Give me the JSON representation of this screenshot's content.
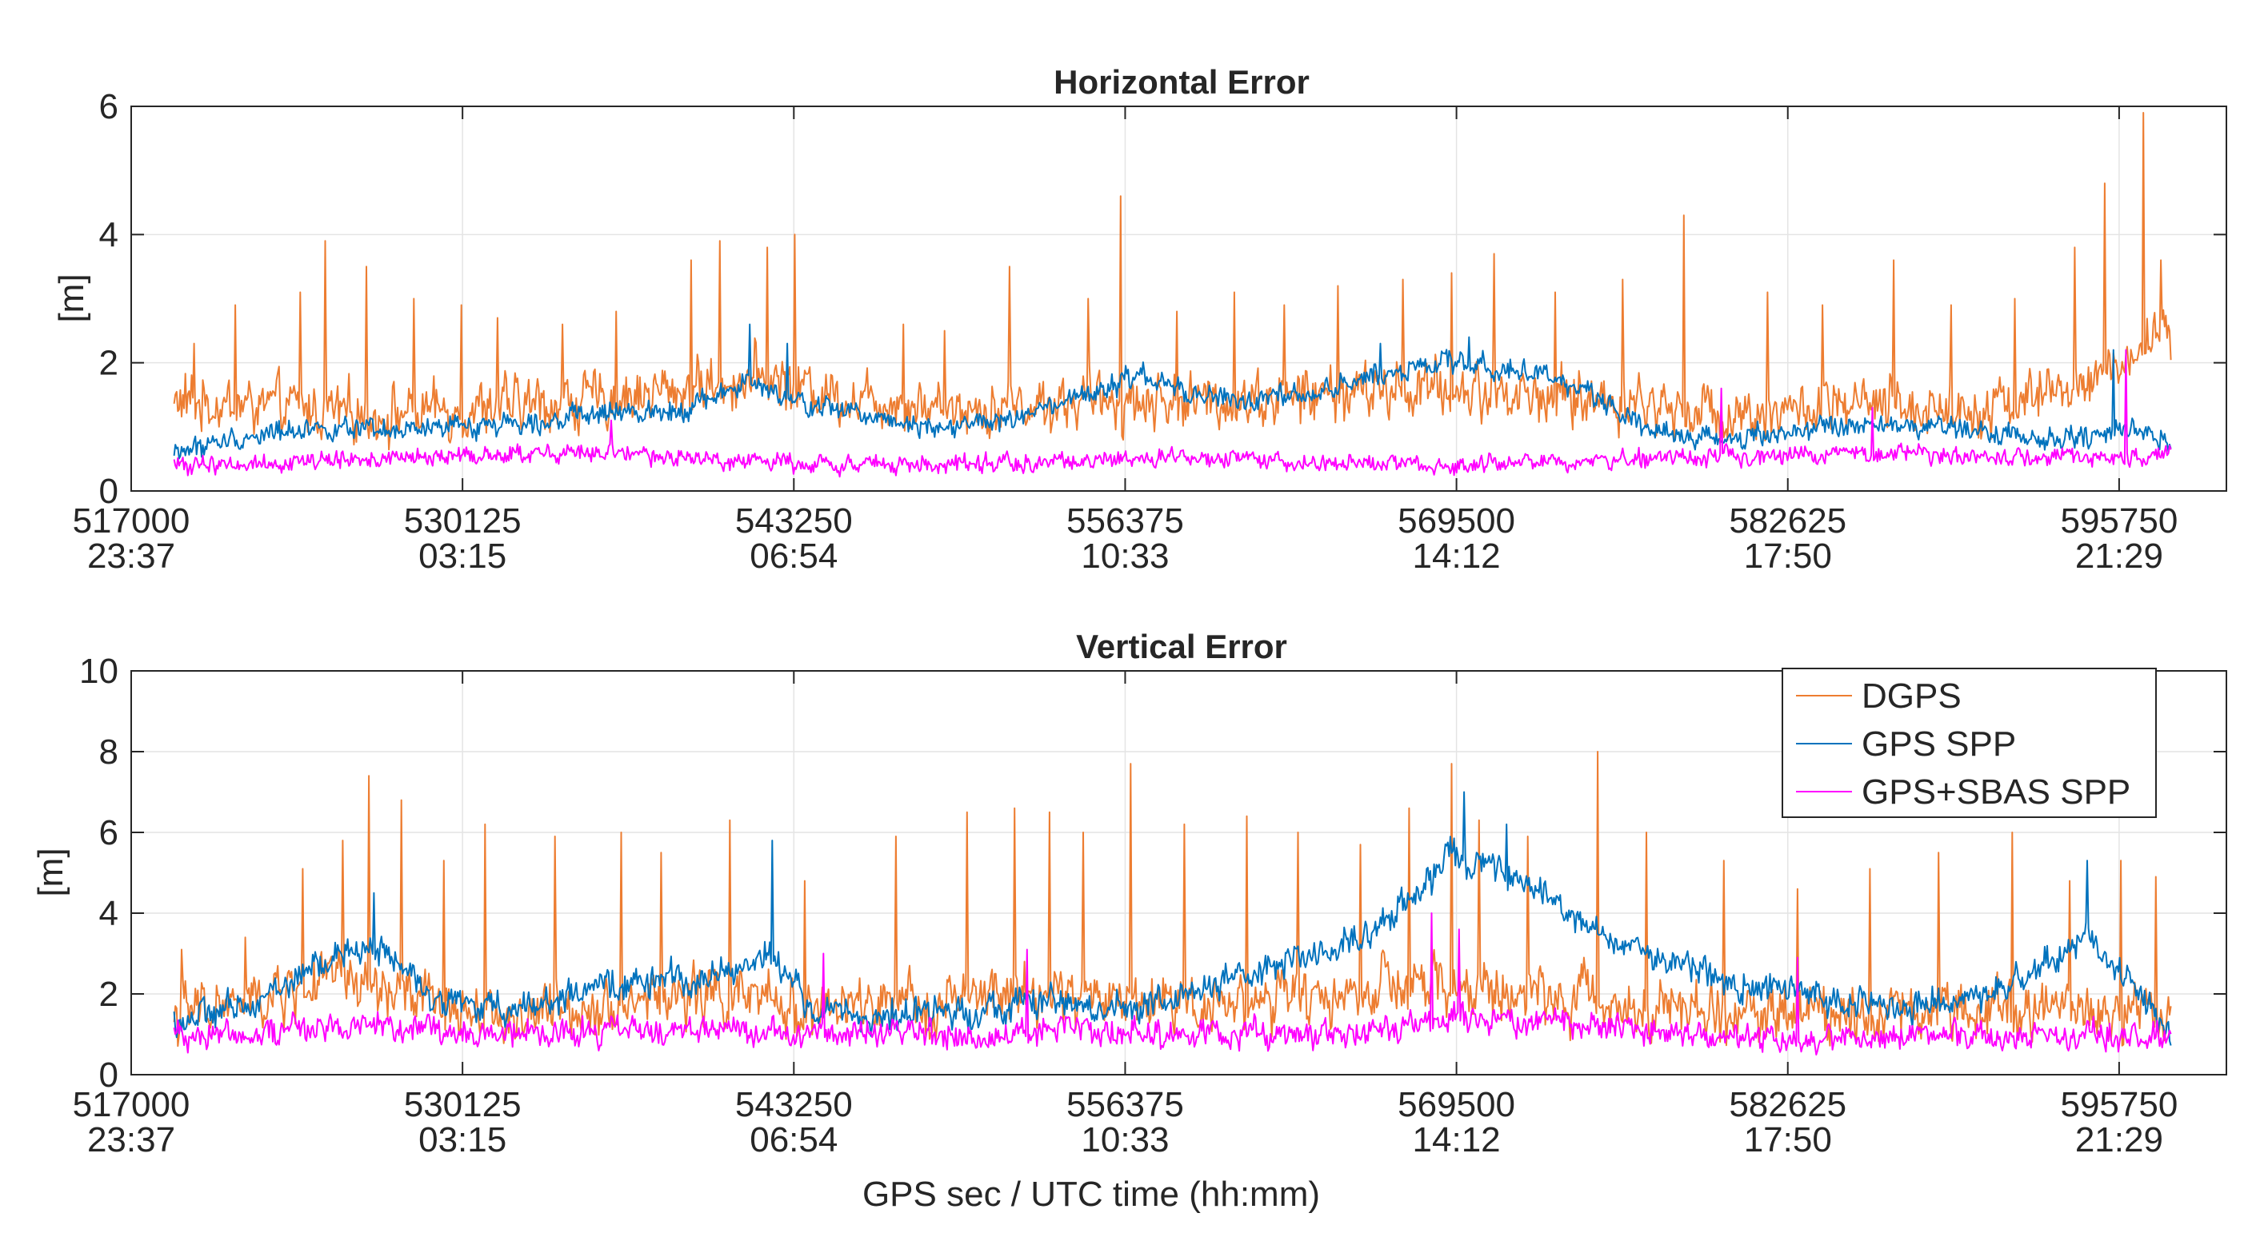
{
  "chart_data": [
    {
      "type": "line",
      "title": "Horizontal Error",
      "ylabel": "[m]",
      "xlabel": "",
      "xlim": [
        517000,
        600000
      ],
      "ylim": [
        0,
        6
      ],
      "yticks": [
        0,
        2,
        4,
        6
      ],
      "xticks": [
        {
          "gps": "517000",
          "utc": "23:37"
        },
        {
          "gps": "530125",
          "utc": "03:15"
        },
        {
          "gps": "543250",
          "utc": "06:54"
        },
        {
          "gps": "556375",
          "utc": "10:33"
        },
        {
          "gps": "569500",
          "utc": "14:12"
        },
        {
          "gps": "582625",
          "utc": "17:50"
        },
        {
          "gps": "595750",
          "utc": "21:29"
        }
      ],
      "grid": true,
      "x_start": 518700,
      "x_end": 597800,
      "series": [
        {
          "name": "DGPS",
          "color": "#ED7D31",
          "trend": [
            [
              518700,
              1.4
            ],
            [
              523000,
              1.3
            ],
            [
              527000,
              1.2
            ],
            [
              531000,
              1.3
            ],
            [
              535000,
              1.4
            ],
            [
              539000,
              1.6
            ],
            [
              542000,
              1.8
            ],
            [
              545000,
              1.5
            ],
            [
              550000,
              1.3
            ],
            [
              555000,
              1.4
            ],
            [
              560000,
              1.4
            ],
            [
              564000,
              1.5
            ],
            [
              568000,
              1.6
            ],
            [
              572000,
              1.5
            ],
            [
              576000,
              1.4
            ],
            [
              580000,
              1.2
            ],
            [
              585000,
              1.3
            ],
            [
              590000,
              1.3
            ],
            [
              594000,
              1.6
            ],
            [
              597800,
              2.4
            ]
          ],
          "noise": 0.55,
          "spikes": [
            [
              519500,
              2.3
            ],
            [
              521100,
              2.9
            ],
            [
              523700,
              3.1
            ],
            [
              524700,
              3.9
            ],
            [
              526300,
              3.5
            ],
            [
              528200,
              3.0
            ],
            [
              530100,
              2.9
            ],
            [
              531500,
              2.7
            ],
            [
              534100,
              2.6
            ],
            [
              536200,
              2.8
            ],
            [
              539200,
              3.6
            ],
            [
              540300,
              3.9
            ],
            [
              542200,
              3.8
            ],
            [
              543300,
              4.0
            ],
            [
              547600,
              2.6
            ],
            [
              549200,
              2.5
            ],
            [
              551800,
              3.5
            ],
            [
              554900,
              3.0
            ],
            [
              556200,
              4.6
            ],
            [
              558400,
              2.8
            ],
            [
              560700,
              3.1
            ],
            [
              562700,
              2.9
            ],
            [
              564800,
              3.2
            ],
            [
              567400,
              3.3
            ],
            [
              569300,
              3.4
            ],
            [
              571000,
              3.7
            ],
            [
              573400,
              3.1
            ],
            [
              576100,
              3.3
            ],
            [
              578500,
              4.3
            ],
            [
              581800,
              3.1
            ],
            [
              584000,
              2.9
            ],
            [
              586800,
              3.6
            ],
            [
              589100,
              2.9
            ],
            [
              591600,
              3.0
            ],
            [
              594000,
              3.8
            ],
            [
              595200,
              4.8
            ],
            [
              596700,
              5.9
            ],
            [
              597400,
              3.6
            ]
          ]
        },
        {
          "name": "GPS SPP",
          "color": "#0072BD",
          "trend": [
            [
              518700,
              0.6
            ],
            [
              521000,
              0.8
            ],
            [
              524000,
              1.0
            ],
            [
              527000,
              0.9
            ],
            [
              530000,
              1.0
            ],
            [
              533000,
              1.1
            ],
            [
              536000,
              1.2
            ],
            [
              539000,
              1.3
            ],
            [
              541500,
              1.7
            ],
            [
              543000,
              1.4
            ],
            [
              546000,
              1.2
            ],
            [
              549000,
              1.0
            ],
            [
              552000,
              1.1
            ],
            [
              555000,
              1.5
            ],
            [
              557000,
              1.8
            ],
            [
              559000,
              1.5
            ],
            [
              561000,
              1.4
            ],
            [
              564000,
              1.5
            ],
            [
              566000,
              1.8
            ],
            [
              569000,
              2.0
            ],
            [
              572000,
              1.9
            ],
            [
              575000,
              1.5
            ],
            [
              577000,
              1.0
            ],
            [
              579000,
              0.8
            ],
            [
              582000,
              0.9
            ],
            [
              585000,
              1.0
            ],
            [
              588000,
              1.0
            ],
            [
              591000,
              0.9
            ],
            [
              594000,
              0.8
            ],
            [
              596000,
              1.0
            ],
            [
              597800,
              0.8
            ]
          ],
          "noise": 0.22,
          "spikes": [
            [
              541500,
              2.6
            ],
            [
              543000,
              2.3
            ],
            [
              566500,
              2.3
            ],
            [
              570000,
              2.4
            ],
            [
              595500,
              2.2
            ]
          ]
        },
        {
          "name": "GPS+SBAS SPP",
          "color": "#FF00FF",
          "trend": [
            [
              518700,
              0.4
            ],
            [
              523000,
              0.45
            ],
            [
              527000,
              0.5
            ],
            [
              531000,
              0.55
            ],
            [
              535000,
              0.6
            ],
            [
              539000,
              0.5
            ],
            [
              543000,
              0.45
            ],
            [
              548000,
              0.4
            ],
            [
              553000,
              0.45
            ],
            [
              558000,
              0.5
            ],
            [
              563000,
              0.45
            ],
            [
              568000,
              0.4
            ],
            [
              573000,
              0.45
            ],
            [
              577000,
              0.5
            ],
            [
              581000,
              0.55
            ],
            [
              585000,
              0.6
            ],
            [
              589000,
              0.55
            ],
            [
              593000,
              0.5
            ],
            [
              597800,
              0.6
            ]
          ],
          "noise": 0.18,
          "spikes": [
            [
              536000,
              1.1
            ],
            [
              580000,
              1.6
            ],
            [
              586000,
              1.3
            ],
            [
              596000,
              2.2
            ]
          ]
        }
      ]
    },
    {
      "type": "line",
      "title": "Vertical Error",
      "ylabel": "[m]",
      "xlabel": "GPS sec / UTC time (hh:mm)",
      "xlim": [
        517000,
        600000
      ],
      "ylim": [
        0,
        10
      ],
      "yticks": [
        0,
        2,
        4,
        6,
        8,
        10
      ],
      "xticks": [
        {
          "gps": "517000",
          "utc": "23:37"
        },
        {
          "gps": "530125",
          "utc": "03:15"
        },
        {
          "gps": "543250",
          "utc": "06:54"
        },
        {
          "gps": "556375",
          "utc": "10:33"
        },
        {
          "gps": "569500",
          "utc": "14:12"
        },
        {
          "gps": "582625",
          "utc": "17:50"
        },
        {
          "gps": "595750",
          "utc": "21:29"
        }
      ],
      "grid": true,
      "x_start": 518700,
      "x_end": 597800,
      "legend_position": "top-right",
      "series": [
        {
          "name": "DGPS",
          "color": "#ED7D31",
          "trend": [
            [
              518700,
              1.5
            ],
            [
              522000,
              1.8
            ],
            [
              525000,
              2.4
            ],
            [
              528000,
              1.9
            ],
            [
              532000,
              1.4
            ],
            [
              536000,
              1.8
            ],
            [
              540000,
              2.0
            ],
            [
              544000,
              1.6
            ],
            [
              548000,
              1.7
            ],
            [
              552000,
              2.0
            ],
            [
              556000,
              1.9
            ],
            [
              560000,
              1.8
            ],
            [
              564000,
              1.9
            ],
            [
              568000,
              2.2
            ],
            [
              572000,
              2.0
            ],
            [
              576000,
              1.8
            ],
            [
              580000,
              1.5
            ],
            [
              584000,
              1.6
            ],
            [
              588000,
              1.6
            ],
            [
              592000,
              1.8
            ],
            [
              597800,
              1.5
            ]
          ],
          "noise": 0.9,
          "spikes": [
            [
              519000,
              3.1
            ],
            [
              521500,
              3.4
            ],
            [
              523800,
              5.1
            ],
            [
              525400,
              5.8
            ],
            [
              526400,
              7.4
            ],
            [
              527700,
              6.8
            ],
            [
              529400,
              5.3
            ],
            [
              531000,
              6.2
            ],
            [
              533800,
              5.9
            ],
            [
              536400,
              6.0
            ],
            [
              538000,
              5.5
            ],
            [
              540700,
              6.3
            ],
            [
              543700,
              4.8
            ],
            [
              547300,
              5.9
            ],
            [
              550100,
              6.5
            ],
            [
              552000,
              6.6
            ],
            [
              553400,
              6.5
            ],
            [
              554700,
              6.0
            ],
            [
              556600,
              7.7
            ],
            [
              558700,
              6.2
            ],
            [
              561200,
              6.4
            ],
            [
              563200,
              6.0
            ],
            [
              565700,
              5.7
            ],
            [
              567600,
              6.6
            ],
            [
              569300,
              7.7
            ],
            [
              570400,
              6.3
            ],
            [
              572300,
              5.9
            ],
            [
              575100,
              8.0
            ],
            [
              577000,
              6.0
            ],
            [
              580100,
              5.3
            ],
            [
              583000,
              4.6
            ],
            [
              585900,
              5.1
            ],
            [
              588600,
              5.5
            ],
            [
              591500,
              6.0
            ],
            [
              593800,
              4.8
            ],
            [
              595800,
              5.3
            ],
            [
              597200,
              4.9
            ]
          ]
        },
        {
          "name": "GPS SPP",
          "color": "#0072BD",
          "trend": [
            [
              518700,
              1.3
            ],
            [
              521000,
              1.6
            ],
            [
              523000,
              2.2
            ],
            [
              525000,
              2.9
            ],
            [
              526800,
              3.2
            ],
            [
              528500,
              2.1
            ],
            [
              531000,
              1.6
            ],
            [
              534000,
              1.9
            ],
            [
              537000,
              2.3
            ],
            [
              540000,
              2.4
            ],
            [
              542300,
              3.0
            ],
            [
              544000,
              1.6
            ],
            [
              547000,
              1.4
            ],
            [
              550000,
              1.6
            ],
            [
              553000,
              1.8
            ],
            [
              556000,
              1.6
            ],
            [
              559000,
              2.0
            ],
            [
              562000,
              2.6
            ],
            [
              565000,
              3.2
            ],
            [
              567000,
              4.0
            ],
            [
              569300,
              5.4
            ],
            [
              571000,
              5.0
            ],
            [
              573000,
              4.4
            ],
            [
              575000,
              3.5
            ],
            [
              578000,
              2.8
            ],
            [
              581000,
              2.2
            ],
            [
              584000,
              1.9
            ],
            [
              587000,
              1.7
            ],
            [
              590000,
              1.8
            ],
            [
              592500,
              2.6
            ],
            [
              594500,
              3.5
            ],
            [
              596000,
              2.5
            ],
            [
              597800,
              1.0
            ]
          ],
          "noise": 0.5,
          "spikes": [
            [
              526600,
              4.5
            ],
            [
              542400,
              5.8
            ],
            [
              569800,
              7.0
            ],
            [
              571500,
              6.2
            ],
            [
              594500,
              5.3
            ]
          ]
        },
        {
          "name": "GPS+SBAS SPP",
          "color": "#FF00FF",
          "trend": [
            [
              518700,
              1.0
            ],
            [
              523000,
              1.1
            ],
            [
              526000,
              1.3
            ],
            [
              530000,
              1.0
            ],
            [
              534000,
              1.0
            ],
            [
              538000,
              1.1
            ],
            [
              542000,
              1.1
            ],
            [
              546000,
              1.0
            ],
            [
              550000,
              1.0
            ],
            [
              554000,
              1.1
            ],
            [
              558000,
              1.0
            ],
            [
              562000,
              1.0
            ],
            [
              566000,
              1.0
            ],
            [
              569000,
              1.4
            ],
            [
              572000,
              1.3
            ],
            [
              575000,
              1.3
            ],
            [
              578000,
              1.0
            ],
            [
              582000,
              0.9
            ],
            [
              586000,
              0.9
            ],
            [
              590000,
              1.0
            ],
            [
              594000,
              1.0
            ],
            [
              597800,
              0.9
            ]
          ],
          "noise": 0.45,
          "spikes": [
            [
              544400,
              3.0
            ],
            [
              552500,
              3.1
            ],
            [
              568500,
              4.0
            ],
            [
              569600,
              3.6
            ],
            [
              583000,
              2.9
            ]
          ]
        }
      ]
    }
  ]
}
